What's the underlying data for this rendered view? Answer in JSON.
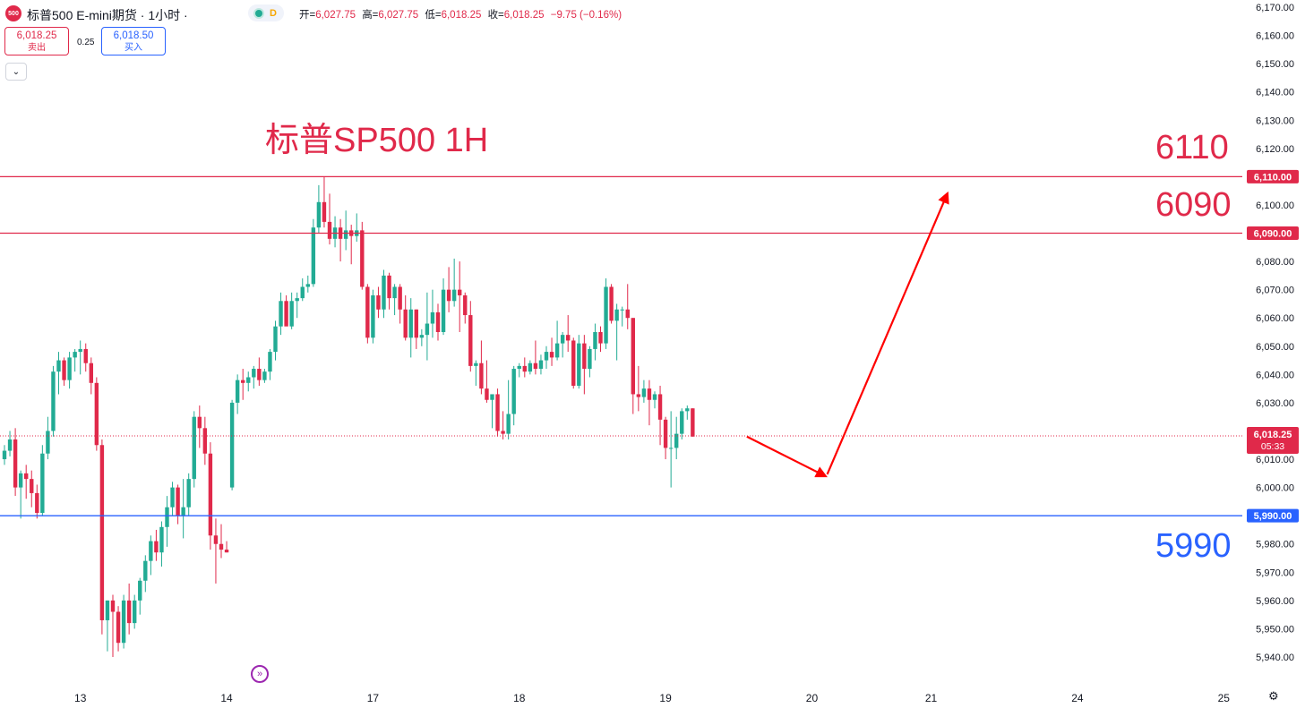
{
  "header": {
    "symbol_badge": "500",
    "title": "标普500 E-mini期货 · 1小时 ·",
    "status_letter": "D",
    "ohlc": [
      {
        "label": "开=",
        "value": "6,027.75"
      },
      {
        "label": "高=",
        "value": "6,027.75"
      },
      {
        "label": "低=",
        "value": "6,018.25"
      },
      {
        "label": "收=",
        "value": "6,018.25"
      },
      {
        "label": "",
        "value": "−9.75 (−0.16%)"
      }
    ]
  },
  "trade": {
    "sell_price": "6,018.25",
    "sell_label": "卖出",
    "spread": "0.25",
    "buy_price": "6,018.50",
    "buy_label": "买入"
  },
  "chart_title": "标普SP500 1H",
  "levels": {
    "upper1": "6110",
    "upper2": "6090",
    "lower": "5990"
  },
  "colors": {
    "up": "#22ab94",
    "down": "#e0294a",
    "resistance": "#e0294a",
    "support": "#2962ff",
    "arrow": "#ff0000"
  },
  "chart_data": {
    "type": "candlestick",
    "ylim": [
      5936,
      6172
    ],
    "y_ticks": [
      6170,
      6160,
      6150,
      6140,
      6130,
      6120,
      6110,
      6100,
      6090,
      6080,
      6070,
      6060,
      6050,
      6040,
      6030,
      6020,
      6010,
      6000,
      5990,
      5980,
      5970,
      5960,
      5950,
      5940
    ],
    "y_tick_labels": [
      "6,170.00",
      "6,160.00",
      "6,150.00",
      "6,140.00",
      "6,130.00",
      "6,120.00",
      "6,110.00",
      "6,100.00",
      "6,090.00",
      "6,080.00",
      "6,070.00",
      "6,060.00",
      "6,050.00",
      "6,040.00",
      "6,030.00",
      "6,020.00",
      "6,010.00",
      "6,000.00",
      "5,990.00",
      "5,980.00",
      "5,970.00",
      "5,960.00",
      "5,950.00",
      "5,940.00"
    ],
    "x_ticks": [
      {
        "label": "13",
        "bar": 14
      },
      {
        "label": "14",
        "bar": 41
      },
      {
        "label": "17",
        "bar": 68
      },
      {
        "label": "18",
        "bar": 95
      },
      {
        "label": "19",
        "bar": 122
      },
      {
        "label": "20",
        "bar": 149
      },
      {
        "label": "21",
        "bar": 171
      },
      {
        "label": "24",
        "bar": 198
      },
      {
        "label": "25",
        "bar": 225
      }
    ],
    "horizontal_lines": [
      {
        "value": 6110,
        "label": "6,110.00",
        "color": "#e0294a"
      },
      {
        "value": 6090,
        "label": "6,090.00",
        "color": "#e0294a"
      },
      {
        "value": 5990,
        "label": "5,990.00",
        "color": "#2962ff"
      }
    ],
    "last_price": {
      "value": 6018.25,
      "label": "6,018.25",
      "countdown": "05:33"
    },
    "projection": [
      {
        "bar": 137,
        "value": 6018
      },
      {
        "bar": 151.5,
        "value": 6004
      },
      {
        "bar": 174,
        "value": 6104
      }
    ],
    "candles": [
      [
        6010,
        6015,
        6008,
        6013
      ],
      [
        6013,
        6020,
        6011,
        6017
      ],
      [
        6017,
        6021,
        5997,
        6000
      ],
      [
        6000,
        6006,
        5989,
        6005
      ],
      [
        6005,
        6008,
        5996,
        6003
      ],
      [
        6003,
        6006,
        5993,
        5998
      ],
      [
        5998,
        6001,
        5989,
        5991
      ],
      [
        5991,
        6015,
        5990,
        6012
      ],
      [
        6012,
        6025,
        6010,
        6020
      ],
      [
        6020,
        6043,
        6018,
        6041
      ],
      [
        6041,
        6048,
        6033,
        6045
      ],
      [
        6045,
        6046,
        6036,
        6038
      ],
      [
        6038,
        6048,
        6035,
        6046
      ],
      [
        6046,
        6049,
        6041,
        6048
      ],
      [
        6048,
        6052,
        6040,
        6049
      ],
      [
        6049,
        6051,
        6041,
        6044
      ],
      [
        6044,
        6046,
        6033,
        6037
      ],
      [
        6037,
        6039,
        6013,
        6015
      ],
      [
        6015,
        6017,
        5948,
        5953
      ],
      [
        5953,
        5960,
        5942,
        5960
      ],
      [
        5960,
        5962,
        5940,
        5956
      ],
      [
        5956,
        5958,
        5942,
        5945
      ],
      [
        5945,
        5962,
        5943,
        5960
      ],
      [
        5960,
        5966,
        5948,
        5952
      ],
      [
        5952,
        5962,
        5950,
        5960
      ],
      [
        5960,
        5968,
        5955,
        5967
      ],
      [
        5967,
        5976,
        5963,
        5974
      ],
      [
        5974,
        5983,
        5969,
        5981
      ],
      [
        5981,
        5985,
        5974,
        5977
      ],
      [
        5977,
        5988,
        5972,
        5986
      ],
      [
        5986,
        5997,
        5979,
        5993
      ],
      [
        5993,
        6002,
        5990,
        6000
      ],
      [
        6000,
        6001,
        5987,
        5990
      ],
      [
        5990,
        6003,
        5982,
        5993
      ],
      [
        5993,
        6005,
        5990,
        6003
      ],
      [
        6003,
        6027,
        6000,
        6025
      ],
      [
        6025,
        6029,
        6014,
        6021
      ],
      [
        6021,
        6025,
        6008,
        6012
      ],
      [
        6012,
        6016,
        5978,
        5983
      ],
      [
        5983,
        5989,
        5966,
        5980
      ],
      [
        5980,
        5987,
        5975,
        5978
      ],
      [
        5978,
        5981,
        5977,
        5977
      ],
      [
        6000,
        6031,
        5999,
        6030
      ],
      [
        6030,
        6040,
        6026,
        6038
      ],
      [
        6038,
        6042,
        6031,
        6037
      ],
      [
        6037,
        6041,
        6034,
        6039
      ],
      [
        6039,
        6043,
        6035,
        6042
      ],
      [
        6042,
        6046,
        6036,
        6038
      ],
      [
        6038,
        6042,
        6037,
        6041
      ],
      [
        6041,
        6049,
        6038,
        6048
      ],
      [
        6048,
        6059,
        6045,
        6057
      ],
      [
        6057,
        6069,
        6054,
        6066
      ],
      [
        6066,
        6068,
        6058,
        6057
      ],
      [
        6057,
        6069,
        6056,
        6066
      ],
      [
        6066,
        6069,
        6060,
        6067
      ],
      [
        6067,
        6074,
        6066,
        6071
      ],
      [
        6071,
        6075,
        6069,
        6072
      ],
      [
        6072,
        6095,
        6071,
        6092
      ],
      [
        6092,
        6107,
        6090,
        6101
      ],
      [
        6101,
        6110,
        6092,
        6094
      ],
      [
        6094,
        6104,
        6086,
        6088
      ],
      [
        6088,
        6096,
        6085,
        6092
      ],
      [
        6092,
        6095,
        6080,
        6088
      ],
      [
        6088,
        6098,
        6084,
        6091
      ],
      [
        6091,
        6093,
        6079,
        6089
      ],
      [
        6089,
        6097,
        6087,
        6091
      ],
      [
        6091,
        6094,
        6070,
        6071
      ],
      [
        6071,
        6072,
        6051,
        6053
      ],
      [
        6053,
        6070,
        6051,
        6068
      ],
      [
        6068,
        6071,
        6060,
        6063
      ],
      [
        6063,
        6077,
        6060,
        6075
      ],
      [
        6075,
        6076,
        6063,
        6067
      ],
      [
        6067,
        6072,
        6061,
        6071
      ],
      [
        6071,
        6072,
        6058,
        6063
      ],
      [
        6063,
        6068,
        6052,
        6053
      ],
      [
        6053,
        6067,
        6046,
        6063
      ],
      [
        6063,
        6063,
        6049,
        6053
      ],
      [
        6053,
        6056,
        6050,
        6054
      ],
      [
        6054,
        6069,
        6045,
        6058
      ],
      [
        6058,
        6070,
        6053,
        6062
      ],
      [
        6062,
        6065,
        6052,
        6055
      ],
      [
        6055,
        6074,
        6054,
        6070
      ],
      [
        6070,
        6078,
        6062,
        6066
      ],
      [
        6066,
        6081,
        6064,
        6070
      ],
      [
        6070,
        6080,
        6055,
        6068
      ],
      [
        6068,
        6069,
        6058,
        6061
      ],
      [
        6061,
        6066,
        6041,
        6043
      ],
      [
        6043,
        6045,
        6036,
        6044
      ],
      [
        6044,
        6052,
        6033,
        6035
      ],
      [
        6035,
        6045,
        6030,
        6031
      ],
      [
        6031,
        6033,
        6021,
        6033
      ],
      [
        6033,
        6035,
        6018,
        6020
      ],
      [
        6020,
        6027,
        6017,
        6019
      ],
      [
        6019,
        6038,
        6017,
        6026
      ],
      [
        6026,
        6043,
        6022,
        6042
      ],
      [
        6042,
        6044,
        6039,
        6043
      ],
      [
        6043,
        6046,
        6039,
        6041
      ],
      [
        6041,
        6045,
        6040,
        6044
      ],
      [
        6044,
        6052,
        6040,
        6042
      ],
      [
        6042,
        6047,
        6040,
        6045
      ],
      [
        6045,
        6050,
        6042,
        6048
      ],
      [
        6048,
        6053,
        6043,
        6046
      ],
      [
        6046,
        6059,
        6045,
        6051
      ],
      [
        6051,
        6055,
        6046,
        6054
      ],
      [
        6054,
        6061,
        6048,
        6052
      ],
      [
        6052,
        6053,
        6035,
        6036
      ],
      [
        6036,
        6054,
        6035,
        6051
      ],
      [
        6051,
        6054,
        6033,
        6042
      ],
      [
        6042,
        6050,
        6039,
        6049
      ],
      [
        6049,
        6058,
        6045,
        6055
      ],
      [
        6055,
        6057,
        6048,
        6051
      ],
      [
        6051,
        6074,
        6049,
        6071
      ],
      [
        6071,
        6072,
        6058,
        6059
      ],
      [
        6059,
        6065,
        6045,
        6063
      ],
      [
        6063,
        6064,
        6057,
        6063
      ],
      [
        6063,
        6072,
        6056,
        6060
      ],
      [
        6060,
        6060,
        6026,
        6033
      ],
      [
        6033,
        6043,
        6027,
        6032
      ],
      [
        6032,
        6038,
        6030,
        6035
      ],
      [
        6035,
        6038,
        6022,
        6031
      ],
      [
        6031,
        6034,
        6028,
        6033
      ],
      [
        6033,
        6036,
        6015,
        6024
      ],
      [
        6024,
        6025,
        6010,
        6014
      ],
      [
        6014,
        6027,
        6000,
        6014
      ],
      [
        6014,
        6025,
        6010,
        6019
      ],
      [
        6019,
        6028,
        6017,
        6027
      ],
      [
        6027,
        6029,
        6024,
        6028
      ],
      [
        6028,
        6028,
        6018,
        6018
      ]
    ]
  }
}
